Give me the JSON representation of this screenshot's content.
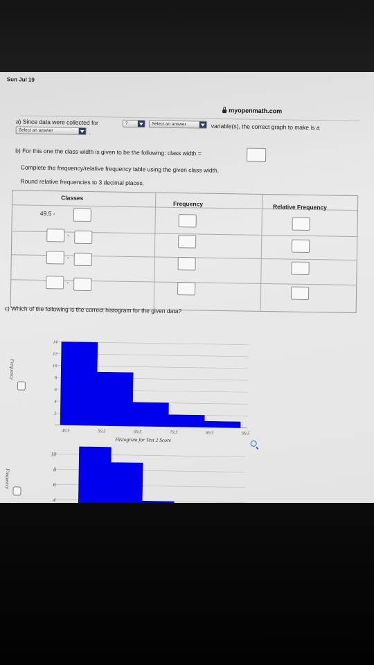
{
  "status_bar": {
    "time": "Sun Jul 19"
  },
  "browser": {
    "url": "myopenmath.com"
  },
  "question_a": {
    "text_before": "a) Since data were collected for",
    "select1_value": "?",
    "select2_value": "Select an answer",
    "text_after": "variable(s), the correct graph to make is a",
    "select3_value": "Select an answer",
    "period": "."
  },
  "question_b": {
    "text": "b) For this one the class width is given to be the following:  class width =",
    "instruction1": "Complete the frequency/relative frequency table using the given class width.",
    "instruction2": "Round relative frequencies to 3 decimal places."
  },
  "table": {
    "headers": [
      "Classes",
      "Frequency",
      "Relative Frequency"
    ],
    "first_class_lower": "49.5 -",
    "dash": "-"
  },
  "question_c": {
    "text": "c) Which of the following is the correct histogram for the given data?"
  },
  "chart_data": [
    {
      "type": "bar",
      "title": "Histogram for Test 2 Score",
      "xlabel": "Histogram for Test 2 Score",
      "ylabel": "Frequency",
      "x_ticks": [
        "49.5",
        "59.5",
        "69.5",
        "79.5",
        "89.5",
        "99.5"
      ],
      "y_ticks": [
        "2",
        "4",
        "6",
        "8",
        "10",
        "12",
        "14"
      ],
      "ylim": [
        0,
        14
      ],
      "bins": [
        [
          49.5,
          59.5
        ],
        [
          59.5,
          69.5
        ],
        [
          69.5,
          79.5
        ],
        [
          79.5,
          89.5
        ],
        [
          89.5,
          99.5
        ]
      ],
      "values": [
        14,
        9,
        4,
        2,
        1
      ],
      "bar_color": "#0000ee"
    },
    {
      "type": "bar",
      "ylabel": "Frequency",
      "y_ticks": [
        "4",
        "6",
        "8",
        "10"
      ],
      "values": [
        11,
        9,
        4
      ],
      "bar_color": "#0000ee"
    }
  ]
}
